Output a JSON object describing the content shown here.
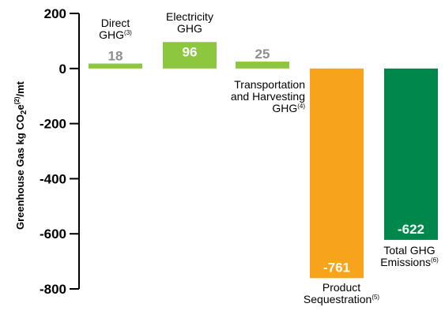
{
  "chart_data": {
    "type": "bar",
    "title": "",
    "xlabel": "",
    "ylabel": {
      "main": "Greenhouse Gas kg CO",
      "sub": "2",
      "unit_sup": "e",
      "ref": "(2)",
      "tail": "/mt"
    },
    "ylim": [
      -800,
      200
    ],
    "yticks": [
      200,
      0,
      -200,
      -400,
      -600,
      -800
    ],
    "grid": false,
    "categories": [
      {
        "lines": [
          "Direct",
          "GHG"
        ],
        "sup": "(3)"
      },
      {
        "lines": [
          "Electricity",
          "GHG"
        ],
        "sup": ""
      },
      {
        "lines": [
          "Transportation",
          "and Harvesting",
          "GHG"
        ],
        "sup": "(4)"
      },
      {
        "lines": [
          "Product",
          "Sequestration"
        ],
        "sup": "(5)"
      },
      {
        "lines": [
          "Total GHG",
          "Emissions"
        ],
        "sup": "(6)"
      }
    ],
    "values": [
      18,
      96,
      25,
      -761,
      -622
    ],
    "value_labels": [
      "18",
      "96",
      "25",
      "-761",
      "-622"
    ],
    "colors": [
      "#8dc63f",
      "#8dc63f",
      "#8dc63f",
      "#f7a31c",
      "#00874c"
    ],
    "label_colors": [
      "#8e8e8e",
      "#ffffff",
      "#8e8e8e",
      "#ffffff",
      "#ffffff"
    ],
    "axis_color": "#000000"
  }
}
